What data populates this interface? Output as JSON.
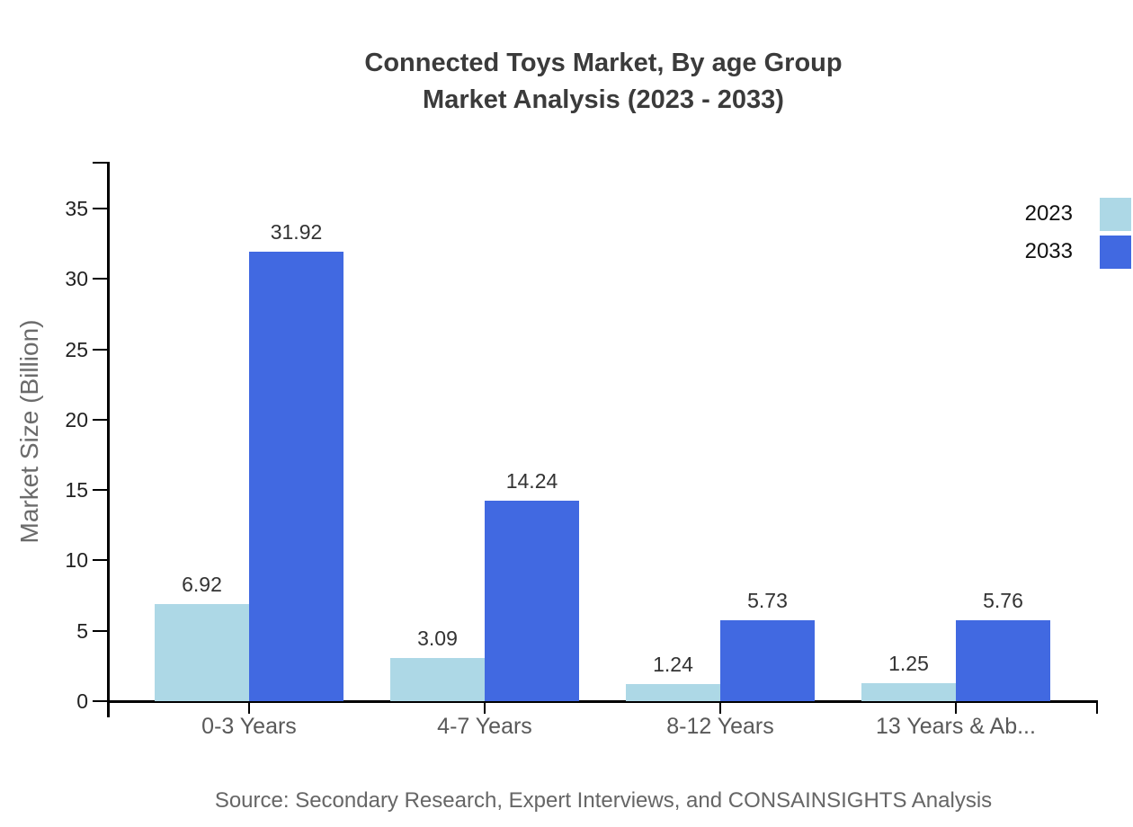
{
  "chart_data": {
    "type": "bar",
    "title_line1": "Connected Toys Market, By age Group",
    "title_line2": "Market Analysis (2023 - 2033)",
    "ylabel": "Market Size (Billion)",
    "yticks": [
      0,
      5,
      10,
      15,
      20,
      25,
      30,
      35
    ],
    "ylim": [
      0,
      38.3
    ],
    "grid": false,
    "legend_position": "top-right",
    "categories": [
      "0-3 Years",
      "4-7 Years",
      "8-12 Years",
      "13 Years & Ab..."
    ],
    "series": [
      {
        "name": "2023",
        "color": "#ADD8E6",
        "values": [
          6.92,
          3.09,
          1.24,
          1.25
        ]
      },
      {
        "name": "2033",
        "color": "#4169E1",
        "values": [
          31.92,
          14.24,
          5.73,
          5.76
        ]
      }
    ],
    "source": "Source: Secondary Research, Expert Interviews, and CONSAINSIGHTS Analysis",
    "colors": {
      "axis": "#000000",
      "title_text": "#3b3b3b",
      "axis_title_text": "#6b6b6b",
      "tick_label_text": "#222222",
      "category_label_text": "#595959",
      "value_label_text": "#333333",
      "source_text": "#666666",
      "background": "#ffffff"
    }
  }
}
